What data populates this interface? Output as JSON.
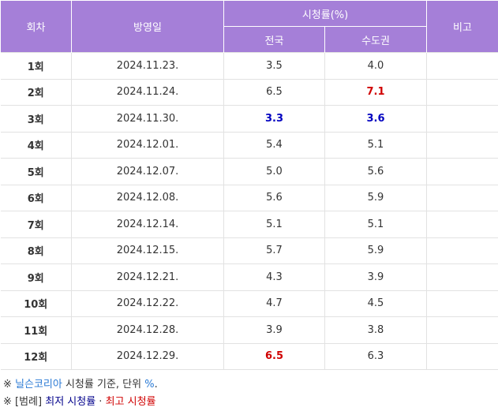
{
  "table": {
    "headers": {
      "episode": "회차",
      "air_date": "방영일",
      "ratings": "시청률(%)",
      "nationwide": "전국",
      "capital": "수도권",
      "note": "비고"
    },
    "rows": [
      {
        "episode": "1회",
        "air_date": "2024.11.23.",
        "nationwide": "3.5",
        "capital": "4.0",
        "note": "",
        "nationwide_mark": "",
        "capital_mark": ""
      },
      {
        "episode": "2회",
        "air_date": "2024.11.24.",
        "nationwide": "6.5",
        "capital": "7.1",
        "note": "",
        "nationwide_mark": "",
        "capital_mark": "high"
      },
      {
        "episode": "3회",
        "air_date": "2024.11.30.",
        "nationwide": "3.3",
        "capital": "3.6",
        "note": "",
        "nationwide_mark": "low",
        "capital_mark": "low"
      },
      {
        "episode": "4회",
        "air_date": "2024.12.01.",
        "nationwide": "5.4",
        "capital": "5.1",
        "note": "",
        "nationwide_mark": "",
        "capital_mark": ""
      },
      {
        "episode": "5회",
        "air_date": "2024.12.07.",
        "nationwide": "5.0",
        "capital": "5.6",
        "note": "",
        "nationwide_mark": "",
        "capital_mark": ""
      },
      {
        "episode": "6회",
        "air_date": "2024.12.08.",
        "nationwide": "5.6",
        "capital": "5.9",
        "note": "",
        "nationwide_mark": "",
        "capital_mark": ""
      },
      {
        "episode": "7회",
        "air_date": "2024.12.14.",
        "nationwide": "5.1",
        "capital": "5.1",
        "note": "",
        "nationwide_mark": "",
        "capital_mark": ""
      },
      {
        "episode": "8회",
        "air_date": "2024.12.15.",
        "nationwide": "5.7",
        "capital": "5.9",
        "note": "",
        "nationwide_mark": "",
        "capital_mark": ""
      },
      {
        "episode": "9회",
        "air_date": "2024.12.21.",
        "nationwide": "4.3",
        "capital": "3.9",
        "note": "",
        "nationwide_mark": "",
        "capital_mark": ""
      },
      {
        "episode": "10회",
        "air_date": "2024.12.22.",
        "nationwide": "4.7",
        "capital": "4.5",
        "note": "",
        "nationwide_mark": "",
        "capital_mark": ""
      },
      {
        "episode": "11회",
        "air_date": "2024.12.28.",
        "nationwide": "3.9",
        "capital": "3.8",
        "note": "",
        "nationwide_mark": "",
        "capital_mark": ""
      },
      {
        "episode": "12회",
        "air_date": "2024.12.29.",
        "nationwide": "6.5",
        "capital": "6.3",
        "note": "",
        "nationwide_mark": "high",
        "capital_mark": ""
      }
    ]
  },
  "notes": {
    "line1_prefix": "※ ",
    "line1_link": "닐슨코리아",
    "line1_mid": " 시청률 기준, 단위 ",
    "line1_unit": "%",
    "line1_end": ".",
    "line2_prefix": "※ [범례] ",
    "legend_low": "최저 시청률",
    "legend_sep": " · ",
    "legend_high": "최고 시청률"
  },
  "colors": {
    "header_bg": "#a57fd8",
    "low": "#0000c0",
    "high": "#d00000",
    "link": "#2a7ad5"
  }
}
